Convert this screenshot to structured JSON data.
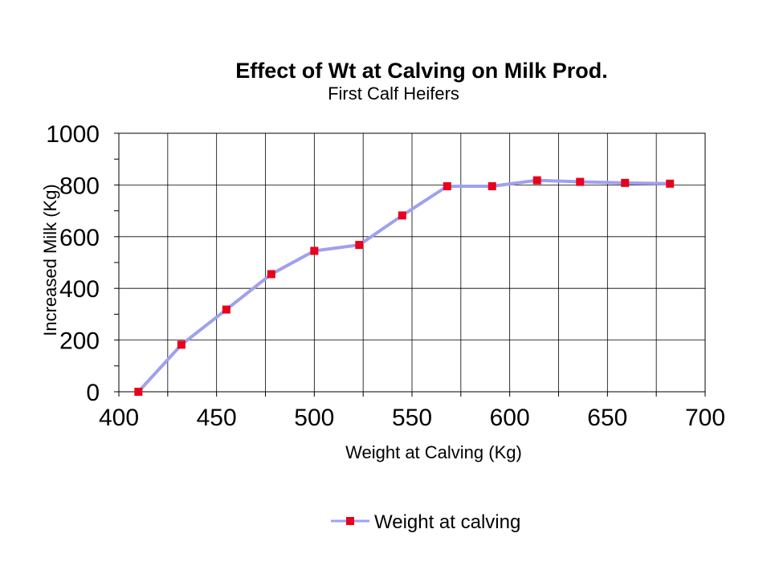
{
  "chart_data": {
    "type": "line",
    "title": "Effect of Wt at Calving on Milk Prod.",
    "subtitle": "First Calf Heifers",
    "xlabel": "Weight at Calving (Kg)",
    "ylabel": "Increased Milk (Kg)",
    "xlim": [
      400,
      700
    ],
    "ylim": [
      0,
      1000
    ],
    "x_ticks": [
      400,
      450,
      500,
      550,
      600,
      650,
      700
    ],
    "y_ticks": [
      0,
      200,
      400,
      600,
      800,
      1000
    ],
    "grid": true,
    "legend_position": "bottom",
    "series": [
      {
        "name": "Weight at calving",
        "line_color": "#a0a0f0",
        "marker_color": "#e8001c",
        "x": [
          410,
          432,
          455,
          478,
          500,
          523,
          545,
          568,
          591,
          614,
          636,
          659,
          682
        ],
        "y": [
          0,
          182,
          318,
          455,
          545,
          568,
          682,
          795,
          795,
          818,
          812,
          808,
          805
        ]
      }
    ]
  }
}
